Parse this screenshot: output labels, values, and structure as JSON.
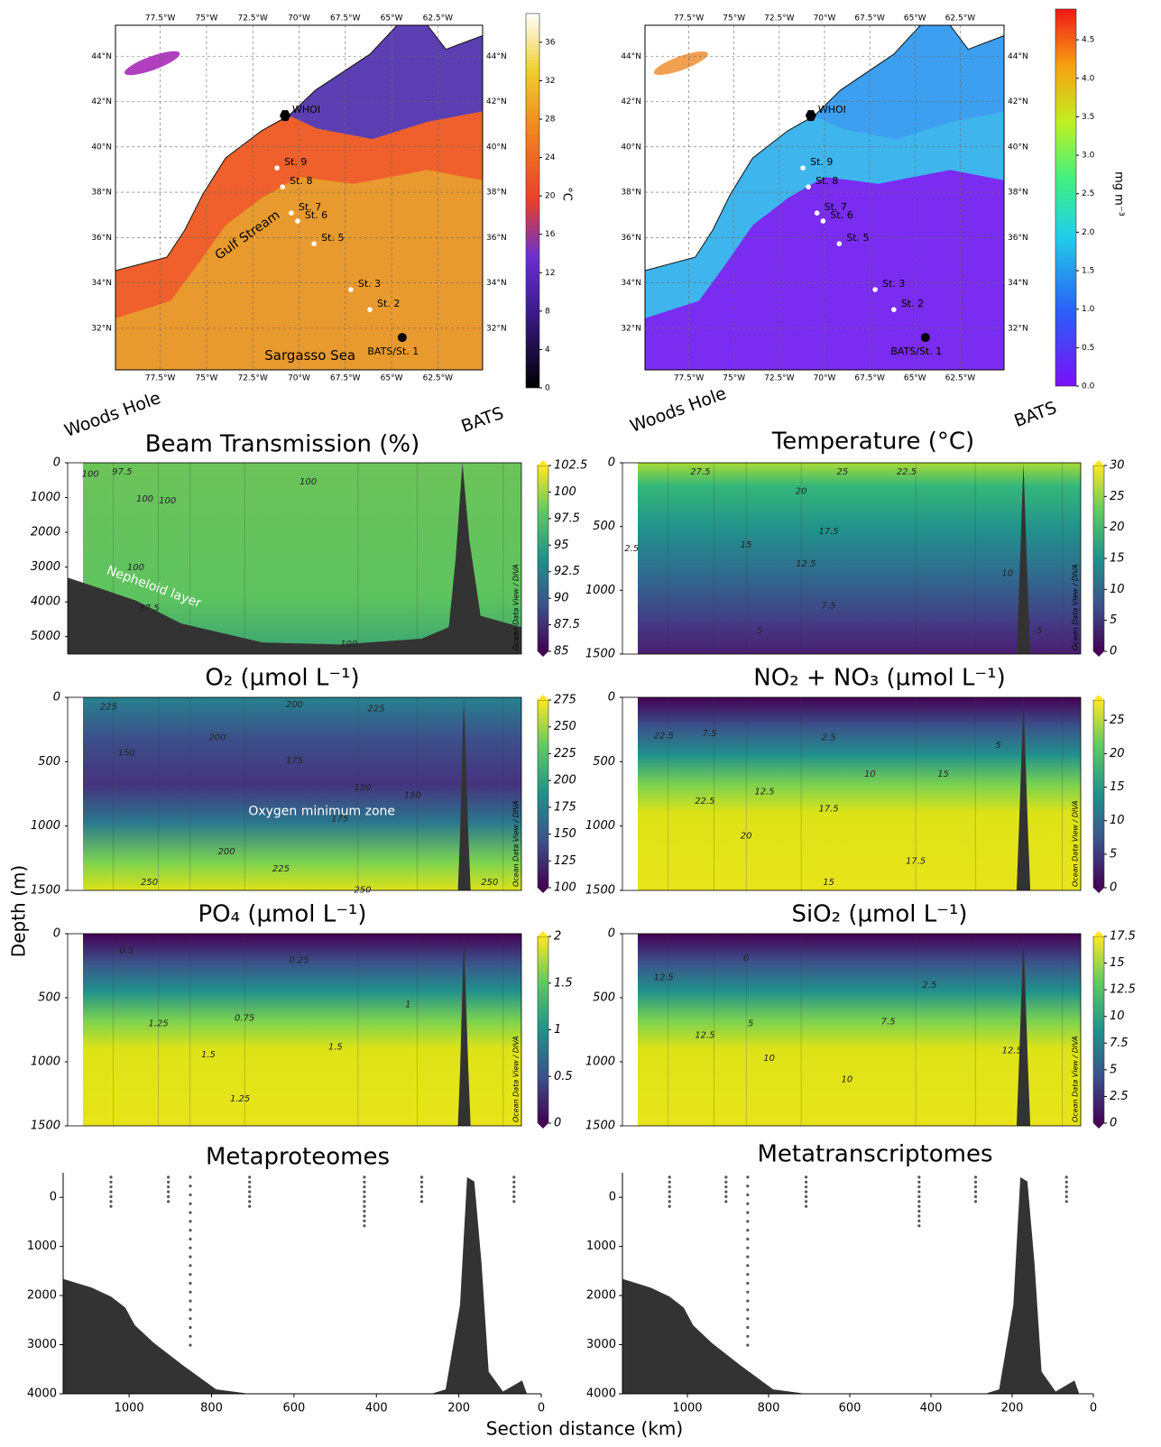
{
  "figure": {
    "y_label": "Depth (m)",
    "x_label": "Section distance (km)"
  },
  "chart_data": [
    {
      "type": "map",
      "lon_ticks": [
        "77.5°W",
        "75°W",
        "72.5°W",
        "70°W",
        "67.5°W",
        "65°W",
        "62.5°W"
      ],
      "lat_ticks": [
        "44°N",
        "42°N",
        "40°N",
        "38°N",
        "36°N",
        "34°N",
        "32°N"
      ],
      "stations": [
        "WHOI",
        "St. 9",
        "St. 8",
        "St. 7",
        "St. 6",
        "St. 5",
        "St. 3",
        "St. 2",
        "BATS/St. 1"
      ],
      "annotations": [
        "Gulf Stream",
        "Sargasso Sea"
      ],
      "colorbar": {
        "label": "°C",
        "clim": [
          0,
          39
        ],
        "ticks": [
          0,
          4,
          8,
          12,
          16,
          20,
          24,
          28,
          32,
          36
        ]
      }
    },
    {
      "type": "map",
      "lon_ticks": [
        "77.5°W",
        "75°W",
        "72.5°W",
        "70°W",
        "67.5°W",
        "65°W",
        "62.5°W"
      ],
      "lat_ticks": [
        "44°N",
        "42°N",
        "40°N",
        "38°N",
        "36°N",
        "34°N",
        "32°N"
      ],
      "stations": [
        "WHOI",
        "St. 9",
        "St. 8",
        "St. 7",
        "St. 6",
        "St. 5",
        "St. 3",
        "St. 2",
        "BATS/St. 1"
      ],
      "annotations": [],
      "colorbar": {
        "label": "mg m⁻³",
        "clim": [
          0,
          4.9
        ],
        "ticks": [
          {
            "value": 0,
            "label": "0.0"
          },
          0.5,
          {
            "value": 1,
            "label": "1.0"
          },
          1.5,
          {
            "value": 2,
            "label": "2.0"
          },
          2.5,
          {
            "value": 3,
            "label": "3.0"
          },
          3.5,
          {
            "value": 4,
            "label": "4.0"
          },
          4.5
        ]
      }
    },
    {
      "type": "section",
      "title": "Beam Transmission (%)",
      "ends": [
        "Woods Hole",
        "BATS"
      ],
      "ylim": [
        0,
        5500
      ],
      "yticks": [
        0,
        1000,
        2000,
        3000,
        4000,
        5000
      ],
      "colorbar": {
        "clim": [
          85,
          102.5
        ],
        "ticks": [
          85,
          87.5,
          90,
          92.5,
          95,
          97.5,
          100,
          102.5
        ]
      },
      "annotations": [
        "Nepheloid layer"
      ],
      "contour_labels": [
        100,
        97.5,
        100,
        100,
        100,
        100,
        87.5,
        100
      ],
      "watermark": "Ocean Data View / DIVA"
    },
    {
      "type": "section",
      "title": "Temperature (°C)",
      "ends": [
        "Woods Hole",
        "BATS"
      ],
      "ylim": [
        0,
        1500
      ],
      "yticks": [
        0,
        500,
        1000,
        1500
      ],
      "colorbar": {
        "clim": [
          0,
          30
        ],
        "ticks": [
          0,
          5,
          10,
          15,
          20,
          25,
          30
        ]
      },
      "annotations": [],
      "contour_labels": [
        27.5,
        25,
        22.5,
        20,
        17.5,
        15,
        12.5,
        10,
        7.5,
        5,
        5,
        2.5
      ],
      "watermark": "Ocean Data View / DIVA"
    },
    {
      "type": "section",
      "title": "O₂ (µmol L⁻¹)",
      "ends": [],
      "ylim": [
        0,
        1500
      ],
      "yticks": [
        0,
        500,
        1000,
        1500
      ],
      "colorbar": {
        "clim": [
          100,
          275
        ],
        "ticks": [
          100,
          125,
          150,
          175,
          200,
          225,
          250,
          275
        ]
      },
      "annotations": [
        "Oxygen minimum zone"
      ],
      "contour_labels": [
        225,
        200,
        225,
        200,
        150,
        175,
        150,
        150,
        175,
        200,
        225,
        250,
        250,
        250
      ],
      "watermark": "Ocean Data View / DIVA"
    },
    {
      "type": "section",
      "title": "NO₂ + NO₃ (µmol L⁻¹)",
      "ends": [],
      "ylim": [
        0,
        1500
      ],
      "yticks": [
        0,
        500,
        1000,
        1500
      ],
      "colorbar": {
        "clim": [
          0,
          28
        ],
        "ticks": [
          0,
          5,
          10,
          15,
          20,
          25
        ]
      },
      "annotations": [],
      "contour_labels": [
        22.5,
        7.5,
        2.5,
        5,
        10,
        15,
        12.5,
        22.5,
        17.5,
        20,
        17.5,
        15
      ],
      "watermark": "Ocean Data View / DIVA"
    },
    {
      "type": "section",
      "title": "PO₄ (µmol L⁻¹)",
      "ends": [],
      "ylim": [
        0,
        1500
      ],
      "yticks": [
        0,
        500,
        1000,
        1500
      ],
      "colorbar": {
        "clim": [
          0,
          2
        ],
        "ticks": [
          0,
          0.5,
          1,
          1.5,
          2
        ]
      },
      "annotations": [],
      "contour_labels": [
        0.5,
        0.25,
        0.75,
        1,
        1.25,
        1.5,
        1.5,
        1.25
      ],
      "watermark": "Ocean Data View / DIVA"
    },
    {
      "type": "section",
      "title": "SiO₂ (µmol L⁻¹)",
      "ends": [],
      "ylim": [
        0,
        1500
      ],
      "yticks": [
        0,
        500,
        1000,
        1500
      ],
      "colorbar": {
        "clim": [
          0,
          17.5
        ],
        "ticks": [
          0,
          2.5,
          5,
          7.5,
          10,
          12.5,
          15,
          17.5
        ]
      },
      "annotations": [],
      "contour_labels": [
        12.5,
        0,
        2.5,
        5,
        7.5,
        12.5,
        10,
        12.5,
        10
      ],
      "watermark": "Ocean Data View / DIVA"
    },
    {
      "type": "samples",
      "title": "Metaproteomes",
      "xlim": [
        1160,
        0
      ],
      "xticks": [
        1000,
        800,
        600,
        400,
        200,
        0
      ],
      "ylim": [
        -500,
        4000
      ],
      "yticks": [
        0,
        1000,
        2000,
        3000,
        4000
      ]
    },
    {
      "type": "samples",
      "title": "Metatranscriptomes",
      "xlim": [
        1160,
        0
      ],
      "xticks": [
        1000,
        800,
        600,
        400,
        200,
        0
      ],
      "ylim": [
        -500,
        4000
      ],
      "yticks": [
        0,
        1000,
        2000,
        3000,
        4000
      ]
    }
  ]
}
